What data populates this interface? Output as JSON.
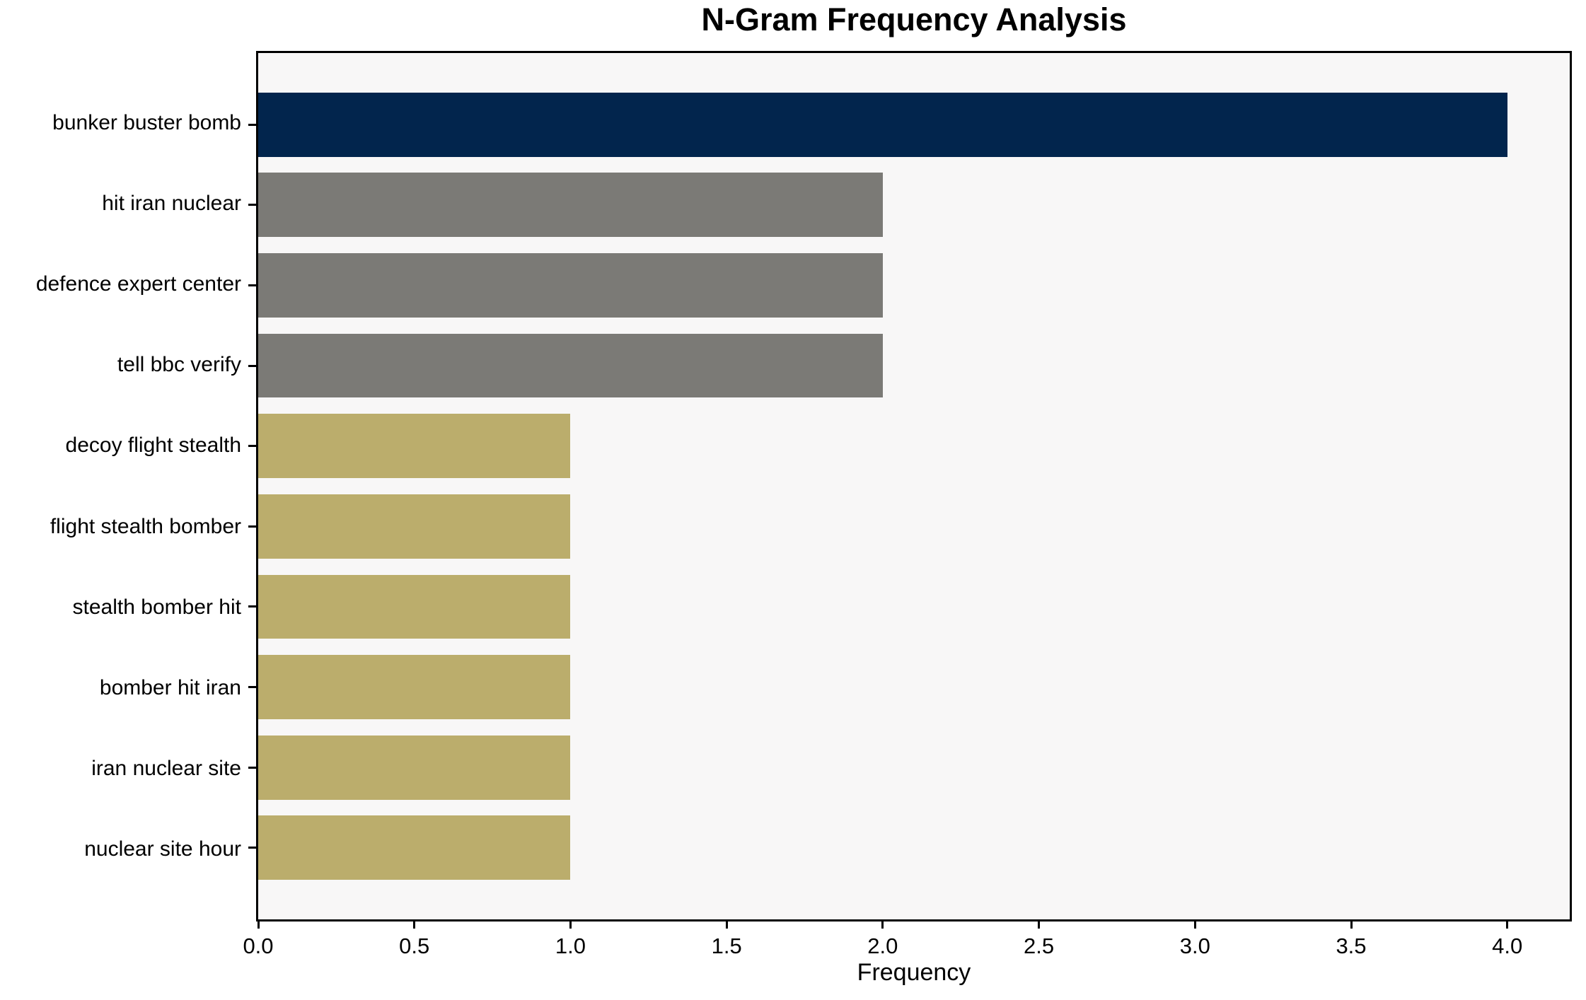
{
  "figure": {
    "title": "N-Gram Frequency Analysis",
    "xlabel": "Frequency"
  },
  "chart_data": {
    "type": "bar",
    "orientation": "horizontal",
    "title": "N-Gram Frequency Analysis",
    "xlabel": "Frequency",
    "ylabel": "",
    "categories": [
      "bunker buster bomb",
      "hit iran nuclear",
      "defence expert center",
      "tell bbc verify",
      "decoy flight stealth",
      "flight stealth bomber",
      "stealth bomber hit",
      "bomber hit iran",
      "iran nuclear site",
      "nuclear site hour"
    ],
    "values": [
      4,
      2,
      2,
      2,
      1,
      1,
      1,
      1,
      1,
      1
    ],
    "bar_colors": [
      "#02254d",
      "#7b7a76",
      "#7b7a76",
      "#7b7a76",
      "#bbad6c",
      "#bbad6c",
      "#bbad6c",
      "#bbad6c",
      "#bbad6c",
      "#bbad6c"
    ],
    "xlim": [
      0,
      4.2
    ],
    "x_ticks": [
      0.0,
      0.5,
      1.0,
      1.5,
      2.0,
      2.5,
      3.0,
      3.5,
      4.0
    ],
    "x_tick_labels": [
      "0.0",
      "0.5",
      "1.0",
      "1.5",
      "2.0",
      "2.5",
      "3.0",
      "3.5",
      "4.0"
    ],
    "bar_height_frac": 0.8,
    "axis_margin_frac": 0.05,
    "grid": false,
    "legend": null,
    "plot_background": "#f8f7f7",
    "spine_color": "#000000",
    "text_color": "#000000",
    "outer_background": "#ffffff"
  }
}
